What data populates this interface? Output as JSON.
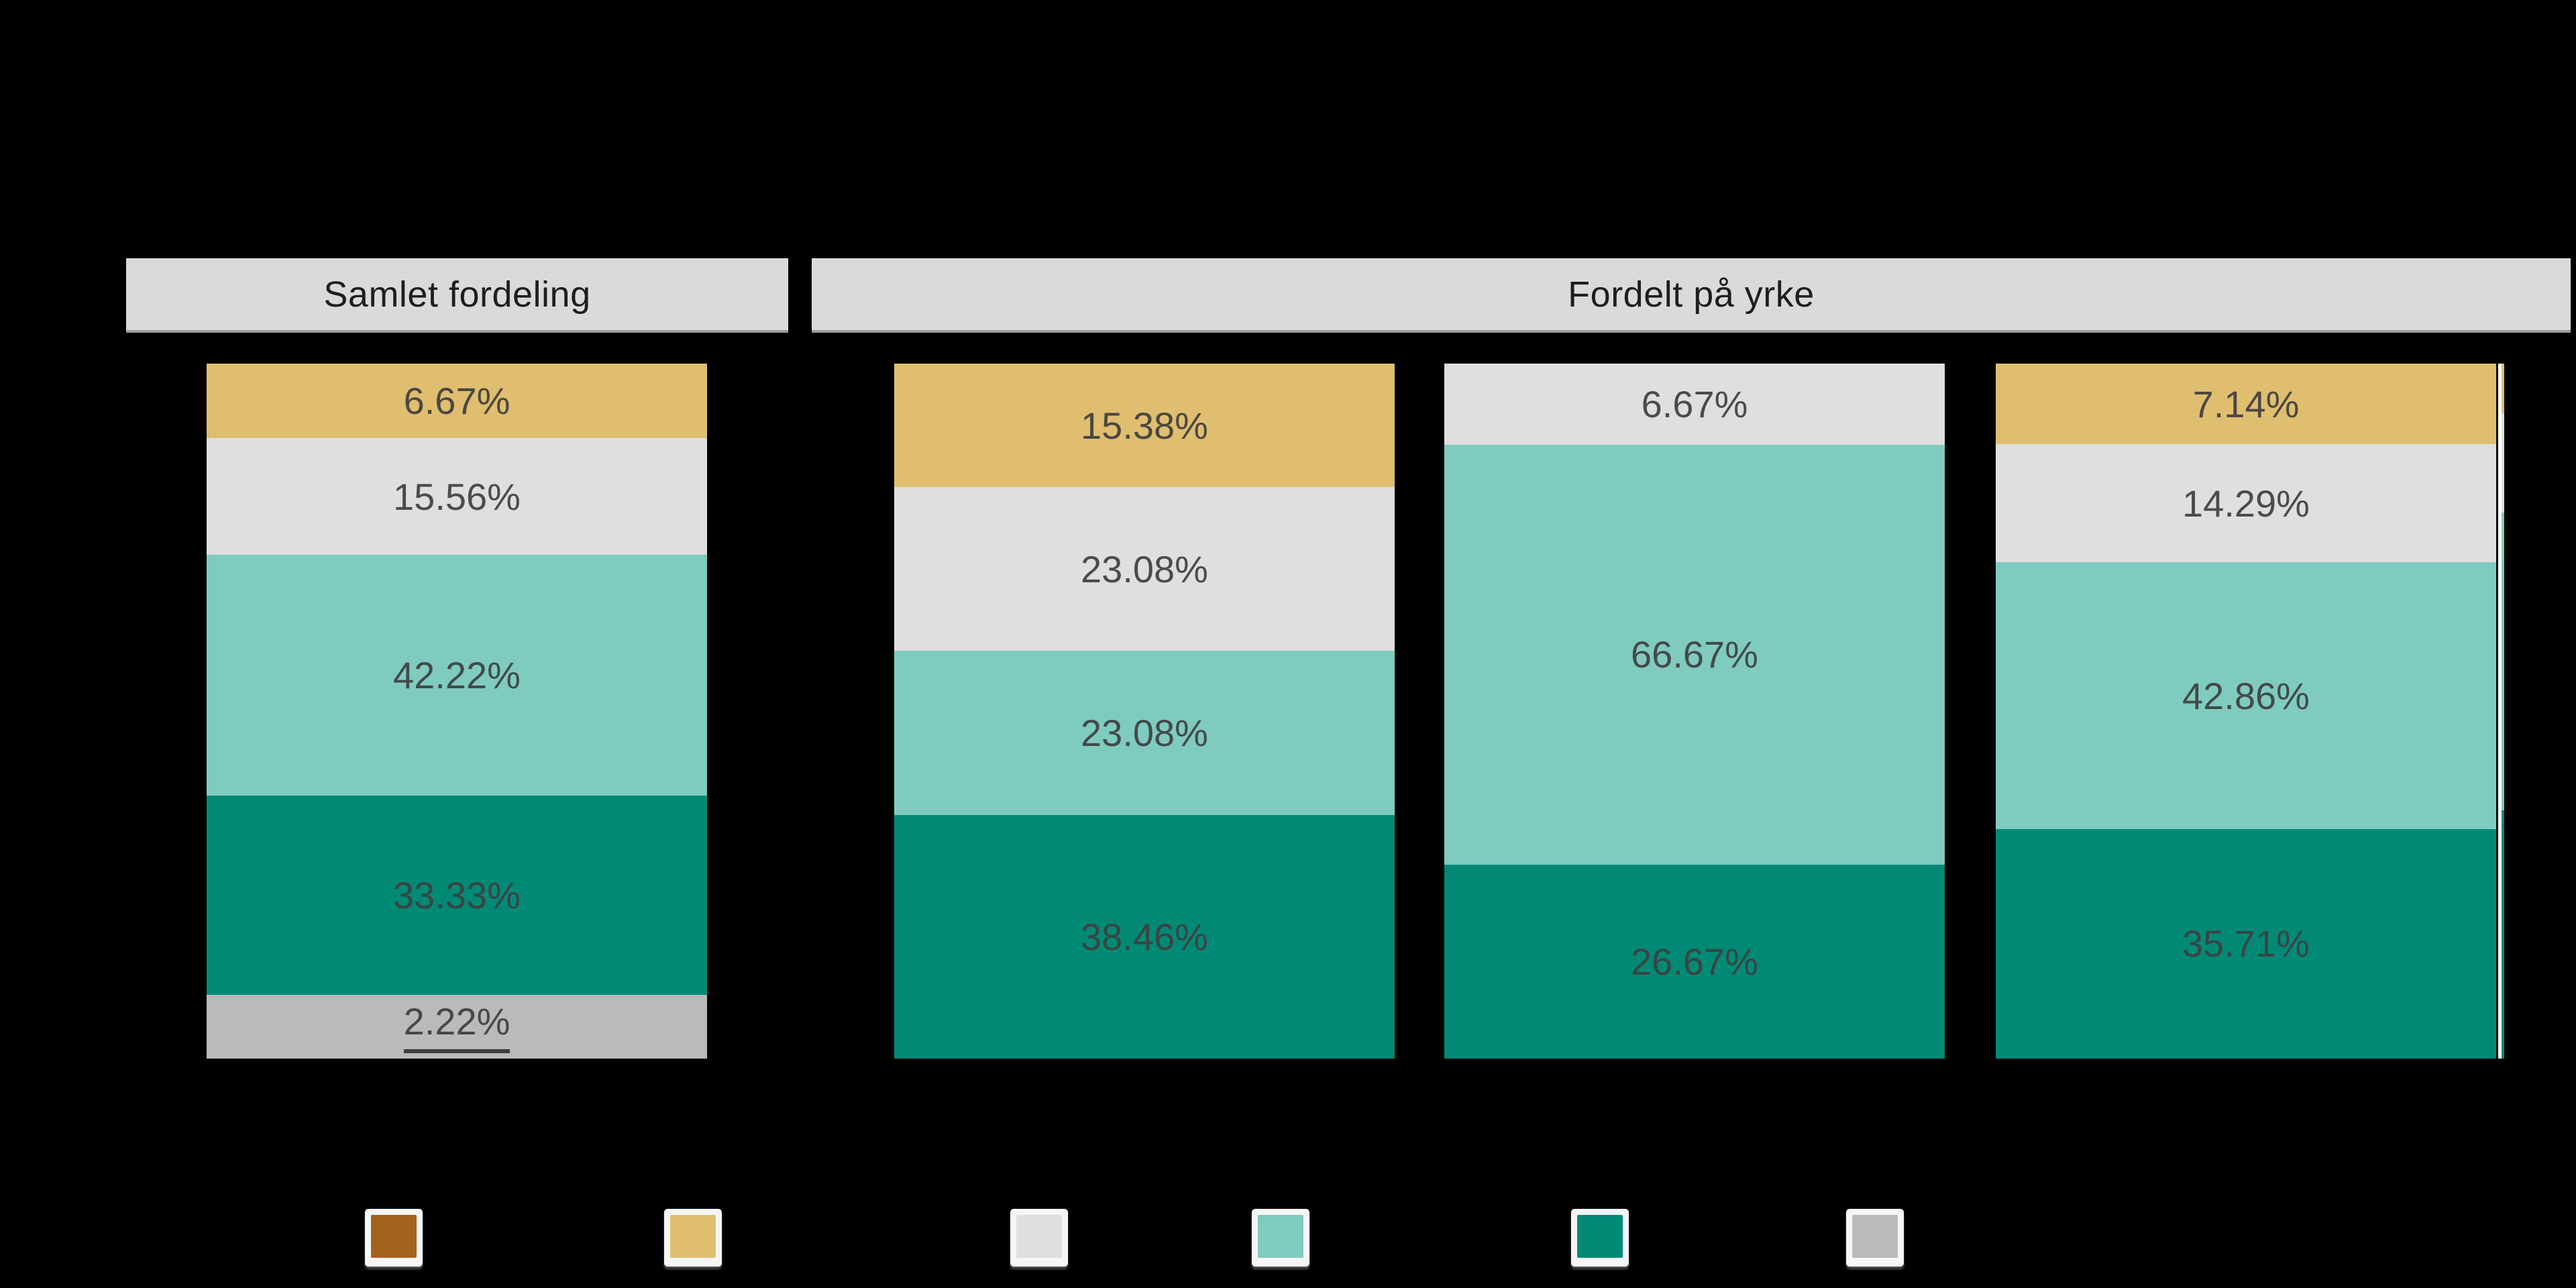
{
  "chart_data": {
    "type": "bar",
    "variant": "100%-stacked-columns",
    "orientation": "vertical",
    "values_are_percent": true,
    "background": "#000000",
    "header_bg": "#DADADA",
    "header_text_color": "#1E1E1E",
    "label_text_color": "#3F3F3F",
    "colors": {
      "brown": "#A5621C",
      "gold": "#DFBE70",
      "light_gray": "#E0DFDE",
      "teal": "#7FCBBF",
      "dark_teal": "#008A76",
      "silver": "#BBBABA"
    },
    "panels": [
      {
        "header": "Samlet fordeling",
        "bars": [
          {
            "segments": [
              {
                "color_key": "gold",
                "value": 6.67,
                "label": "6.67%"
              },
              {
                "color_key": "light_gray",
                "value": 15.56,
                "label": "15.56%"
              },
              {
                "color_key": "teal",
                "value": 42.22,
                "label": "42.22%"
              },
              {
                "color_key": "dark_teal",
                "value": 33.33,
                "label": "33.33%"
              },
              {
                "color_key": "silver",
                "value": 2.22,
                "label": "2.22%",
                "label_underlined": true
              }
            ]
          }
        ]
      },
      {
        "header": "Fordelt på yrke",
        "bars": [
          {
            "segments": [
              {
                "color_key": "gold",
                "value": 15.38,
                "label": "15.38%"
              },
              {
                "color_key": "light_gray",
                "value": 23.08,
                "label": "23.08%"
              },
              {
                "color_key": "teal",
                "value": 23.08,
                "label": "23.08%"
              },
              {
                "color_key": "dark_teal",
                "value": 38.46,
                "label": "38.46%"
              }
            ]
          },
          {
            "segments": [
              {
                "color_key": "light_gray",
                "value": 6.67,
                "label": "6.67%"
              },
              {
                "color_key": "teal",
                "value": 66.67,
                "label": "66.67%"
              },
              {
                "color_key": "dark_teal",
                "value": 26.67,
                "label": "26.67%"
              }
            ]
          },
          {
            "segments": [
              {
                "color_key": "gold",
                "value": 7.14,
                "label": "7.14%"
              },
              {
                "color_key": "light_gray",
                "value": 14.29,
                "label": "14.29%"
              },
              {
                "color_key": "teal",
                "value": 42.86,
                "label": "42.86%"
              },
              {
                "color_key": "dark_teal",
                "value": 35.71,
                "label": "35.71%"
              }
            ]
          }
        ]
      }
    ],
    "legend": {
      "position": "bottom",
      "swatch_colors": [
        "brown",
        "gold",
        "light_gray",
        "teal",
        "dark_teal",
        "silver"
      ],
      "labels_visible": false
    }
  }
}
